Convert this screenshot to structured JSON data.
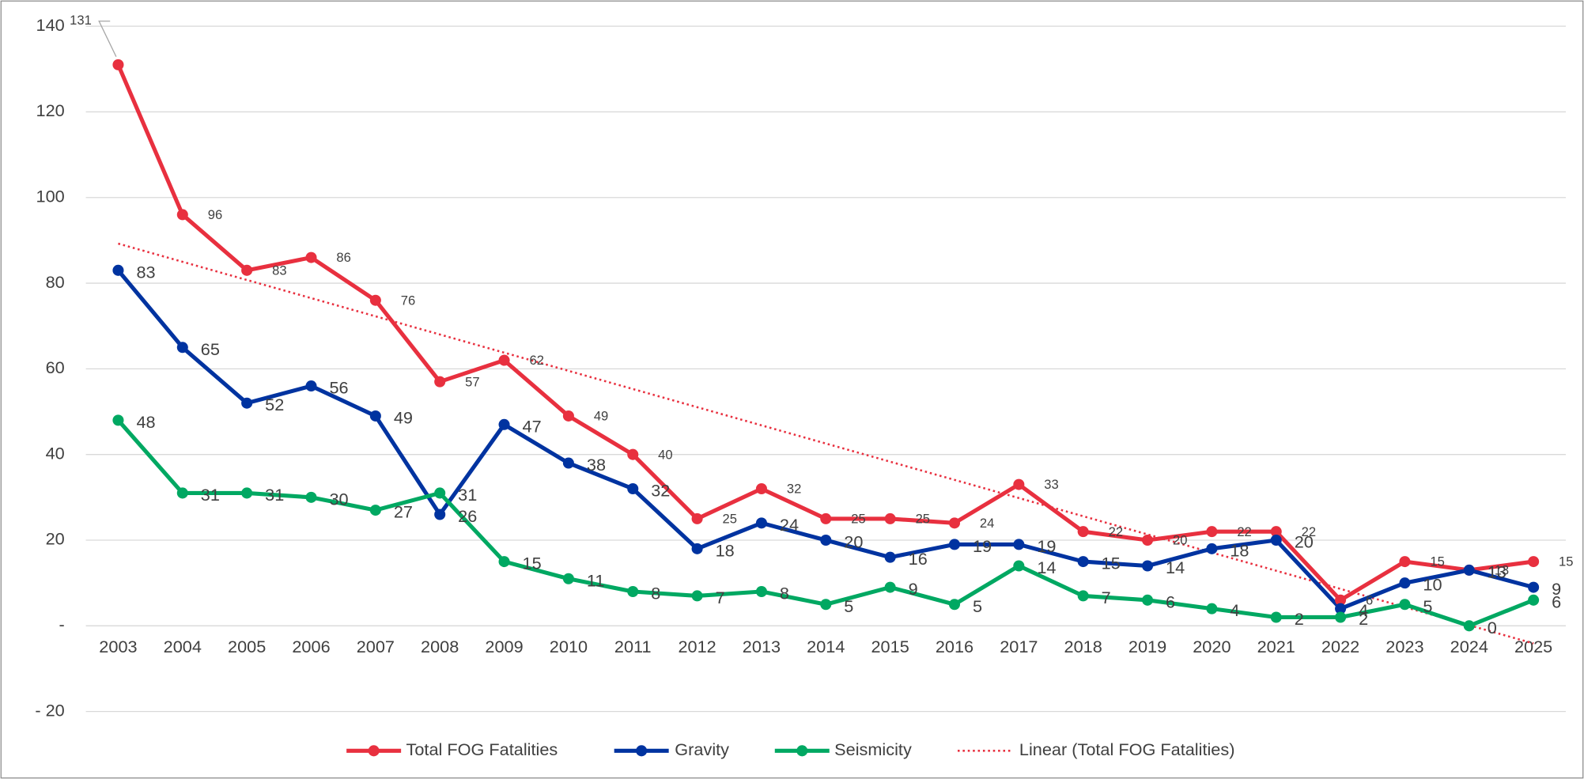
{
  "chart_data": {
    "type": "line",
    "categories": [
      "2003",
      "2004",
      "2005",
      "2006",
      "2007",
      "2008",
      "2009",
      "2010",
      "2011",
      "2012",
      "2013",
      "2014",
      "2015",
      "2016",
      "2017",
      "2018",
      "2019",
      "2020",
      "2021",
      "2022",
      "2023",
      "2024",
      "2025"
    ],
    "series": [
      {
        "name": "Total FOG Fatalities",
        "color": "#e8303f",
        "values": [
          131,
          96,
          83,
          86,
          76,
          57,
          62,
          49,
          40,
          25,
          32,
          25,
          25,
          24,
          33,
          22,
          20,
          22,
          22,
          6,
          15,
          13,
          15
        ]
      },
      {
        "name": "Gravity",
        "color": "#0033a0",
        "values": [
          83,
          65,
          52,
          56,
          49,
          26,
          47,
          38,
          32,
          18,
          24,
          20,
          16,
          19,
          19,
          15,
          14,
          18,
          20,
          4,
          10,
          13,
          9
        ]
      },
      {
        "name": "Seismicity",
        "color": "#00a862",
        "values": [
          48,
          31,
          31,
          30,
          27,
          31,
          15,
          11,
          8,
          7,
          8,
          5,
          9,
          5,
          14,
          7,
          6,
          4,
          2,
          2,
          5,
          0,
          6
        ]
      }
    ],
    "trendline": {
      "name": "Linear (Total FOG Fatalities)",
      "type": "linear",
      "color": "#e8303f"
    },
    "ylim": [
      -20,
      140
    ],
    "yticks": [
      {
        "value": -20,
        "label": "- 20"
      },
      {
        "value": 0,
        "label": "-"
      },
      20,
      40,
      60,
      80,
      100,
      120,
      140
    ],
    "grid": true,
    "legend": "bottom"
  }
}
